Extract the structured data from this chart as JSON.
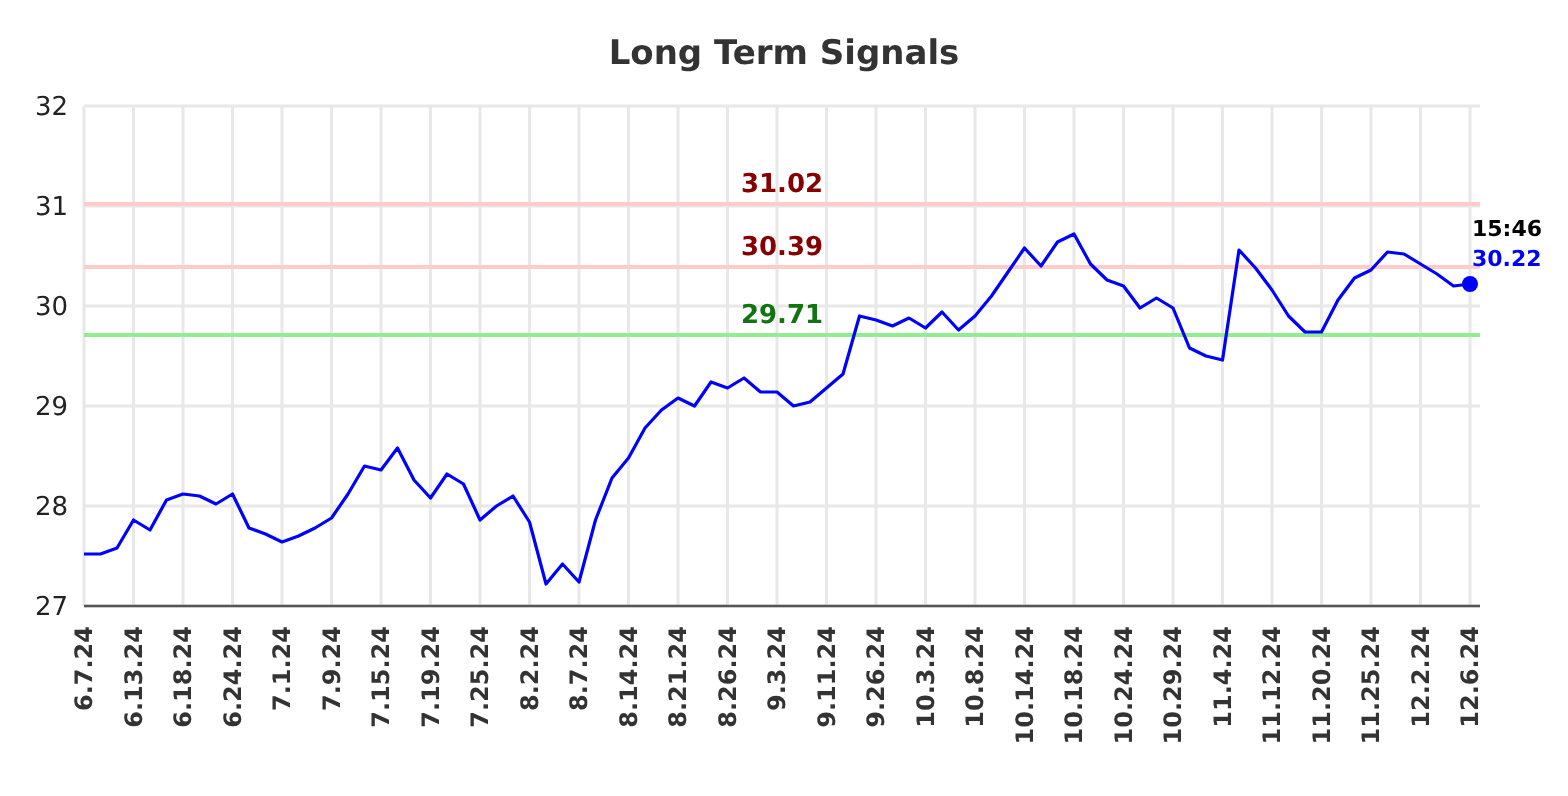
{
  "chart_data": {
    "type": "line",
    "title": "Long Term Signals",
    "categories": [
      "6.7.24",
      null,
      null,
      "6.13.24",
      null,
      null,
      "6.18.24",
      null,
      null,
      "6.24.24",
      null,
      null,
      "7.1.24",
      null,
      null,
      "7.9.24",
      null,
      null,
      "7.15.24",
      null,
      null,
      "7.19.24",
      null,
      null,
      "7.25.24",
      null,
      null,
      "8.2.24",
      null,
      null,
      "8.7.24",
      null,
      null,
      "8.14.24",
      null,
      null,
      "8.21.24",
      null,
      null,
      "8.26.24",
      null,
      null,
      "9.3.24",
      null,
      null,
      "9.11.24",
      null,
      null,
      "9.26.24",
      null,
      null,
      "10.3.24",
      null,
      null,
      "10.8.24",
      null,
      null,
      "10.14.24",
      null,
      null,
      "10.18.24",
      null,
      null,
      "10.24.24",
      null,
      null,
      "10.29.24",
      null,
      null,
      "11.4.24",
      null,
      null,
      "11.12.24",
      null,
      null,
      "11.20.24",
      null,
      null,
      "11.25.24",
      null,
      null,
      "12.2.24",
      null,
      null,
      "12.6.24"
    ],
    "series": [
      {
        "color": "#0000ff",
        "values": [
          27.52,
          27.52,
          27.58,
          27.86,
          27.76,
          28.06,
          28.12,
          28.1,
          28.02,
          28.12,
          27.78,
          27.72,
          27.64,
          27.7,
          27.78,
          27.88,
          28.12,
          28.4,
          28.36,
          28.58,
          28.26,
          28.08,
          28.32,
          28.22,
          27.86,
          28.0,
          28.1,
          27.84,
          27.22,
          27.42,
          27.24,
          27.86,
          28.28,
          28.48,
          28.78,
          28.96,
          29.08,
          29.0,
          29.24,
          29.18,
          29.28,
          29.14,
          29.14,
          29.0,
          29.04,
          29.18,
          29.32,
          29.9,
          29.86,
          29.8,
          29.88,
          29.78,
          29.94,
          29.76,
          29.9,
          30.1,
          30.34,
          30.58,
          30.4,
          30.64,
          30.72,
          30.42,
          30.26,
          30.2,
          29.98,
          30.08,
          29.98,
          29.58,
          29.5,
          29.46,
          30.56,
          30.38,
          30.16,
          29.9,
          29.74,
          29.74,
          30.06,
          30.28,
          30.36,
          30.54,
          30.52,
          30.42,
          30.32,
          30.2,
          30.22
        ]
      },
      {
        "type": "scatter",
        "color": "#0000ff",
        "marker": "circle",
        "x": [
          "12.6.24"
        ],
        "values": [
          30.22
        ],
        "value_labels": [
          "30.22"
        ]
      }
    ],
    "ylim": [
      27,
      32
    ],
    "yticks": [
      27,
      28,
      29,
      30,
      31,
      32
    ],
    "grid": true,
    "line_style": "solid",
    "ref_lines": [
      {
        "axis": "y",
        "value": 31.02,
        "label": "31.02",
        "color": "#ffcccc"
      },
      {
        "axis": "y",
        "value": 30.39,
        "label": "30.39",
        "color": "#ffcccc"
      },
      {
        "axis": "y",
        "value": 29.71,
        "label": "29.71",
        "color": "#90ee90"
      }
    ],
    "annotations": [
      {
        "text": "15:46",
        "x": "12.6.24",
        "y": 30.22
      }
    ]
  }
}
